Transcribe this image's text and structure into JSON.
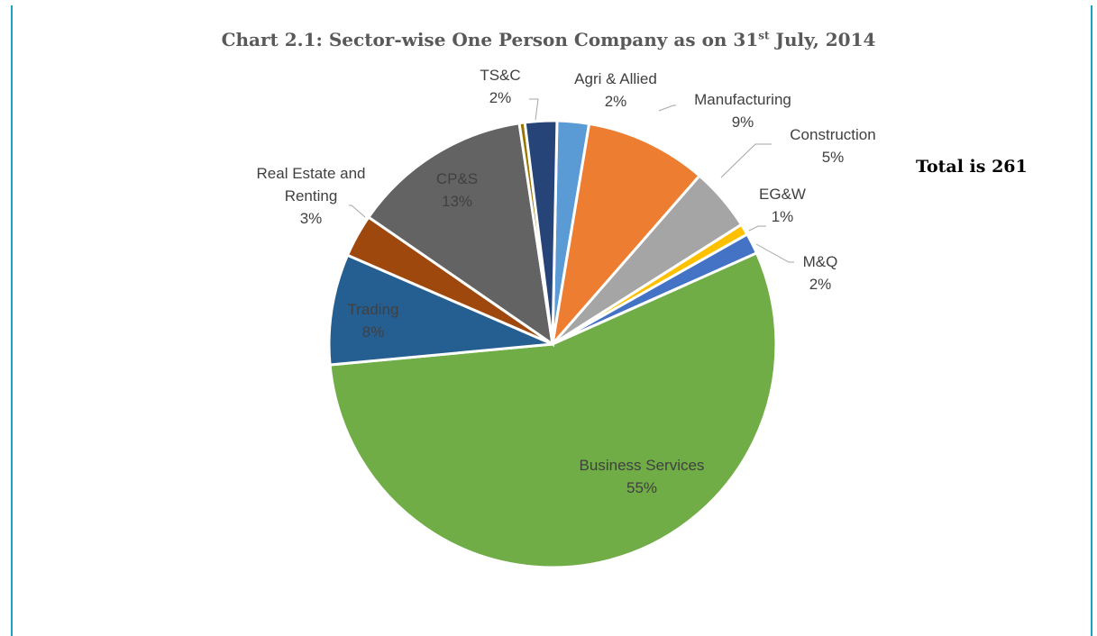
{
  "chart_data": {
    "type": "pie",
    "title": "Chart 2.1: Sector-wise One Person Company as on 31st July, 2014",
    "title_main": "Chart 2.1: Sector-wise One Person Company as on 31",
    "title_sup": "st",
    "title_tail": " July, 2014",
    "annotation": "Total is 261",
    "slices": [
      {
        "label": "Agri & Allied",
        "pct_label": "2%",
        "value": 2.3,
        "color": "#5b9bd5"
      },
      {
        "label": "Manufacturing",
        "pct_label": "9%",
        "value": 8.8,
        "color": "#ed7d31"
      },
      {
        "label": "Construction",
        "pct_label": "5%",
        "value": 4.6,
        "color": "#a5a5a5"
      },
      {
        "label": "EG&W",
        "pct_label": "1%",
        "value": 0.8,
        "color": "#ffc000"
      },
      {
        "label": "M&Q",
        "pct_label": "2%",
        "value": 1.5,
        "color": "#4472c4"
      },
      {
        "label": "Business Services",
        "pct_label": "55%",
        "value": 55.2,
        "color": "#70ad47"
      },
      {
        "label": "Trading",
        "pct_label": "8%",
        "value": 8.0,
        "color": "#255e91"
      },
      {
        "label": "Real Estate and Renting",
        "pct_label": "3%",
        "value": 3.1,
        "color": "#9e480e"
      },
      {
        "label": "CP&S",
        "pct_label": "13%",
        "value": 13.0,
        "color": "#636363"
      },
      {
        "label": "",
        "pct_label": "",
        "value": 0.4,
        "color": "#997300"
      },
      {
        "label": "TS&C",
        "pct_label": "2%",
        "value": 2.3,
        "color": "#264478"
      }
    ]
  }
}
